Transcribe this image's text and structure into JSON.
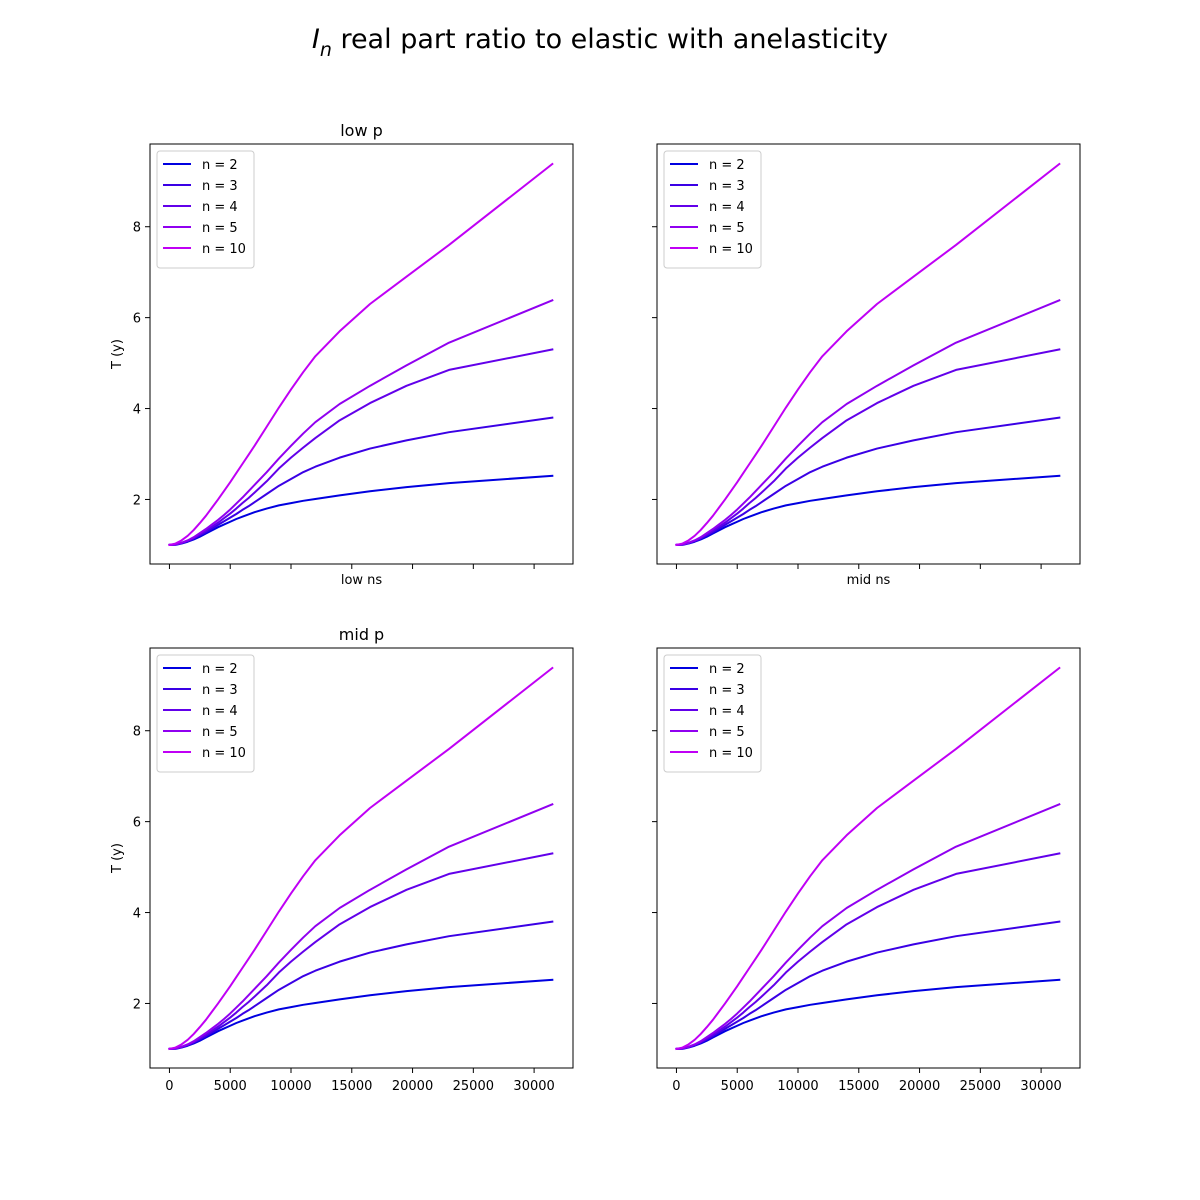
{
  "figure": {
    "title_symbol": "I",
    "title_subscript": "n",
    "title_rest": " real part ratio to elastic with anelasticity"
  },
  "chart_data": [
    {
      "type": "line",
      "title": "low p",
      "xlabel": "low ns",
      "ylabel": "T (y)",
      "show_xticklabels": false,
      "show_yticklabels": true,
      "xlim": [
        -1600,
        33200
      ],
      "ylim": [
        0.58,
        9.82
      ],
      "xticks": [
        0,
        5000,
        10000,
        15000,
        20000,
        25000,
        30000
      ],
      "yticks": [
        2,
        4,
        6,
        8
      ],
      "grid": false,
      "legend_position": "top-left",
      "x": [
        0,
        500,
        1000,
        1500,
        2000,
        2500,
        3000,
        3500,
        4000,
        4500,
        5000,
        5500,
        6000,
        6500,
        7000,
        8000,
        9000,
        10000,
        11000,
        12000,
        14000,
        16500,
        19500,
        23000,
        31500
      ],
      "series": [
        {
          "name": "n = 2",
          "color": "#0000e0",
          "values": [
            1.0,
            1.0,
            1.03,
            1.07,
            1.12,
            1.18,
            1.25,
            1.32,
            1.39,
            1.45,
            1.51,
            1.57,
            1.62,
            1.67,
            1.72,
            1.8,
            1.87,
            1.92,
            1.97,
            2.01,
            2.09,
            2.18,
            2.27,
            2.36,
            2.52
          ]
        },
        {
          "name": "n = 3",
          "color": "#3a00e5",
          "values": [
            1.0,
            1.01,
            1.04,
            1.08,
            1.14,
            1.21,
            1.28,
            1.36,
            1.44,
            1.52,
            1.6,
            1.68,
            1.77,
            1.85,
            1.94,
            2.12,
            2.3,
            2.45,
            2.6,
            2.72,
            2.92,
            3.12,
            3.3,
            3.48,
            3.8
          ]
        },
        {
          "name": "n = 4",
          "color": "#6200ea",
          "values": [
            1.0,
            1.01,
            1.04,
            1.09,
            1.15,
            1.23,
            1.31,
            1.4,
            1.49,
            1.59,
            1.69,
            1.8,
            1.92,
            2.03,
            2.15,
            2.4,
            2.68,
            2.92,
            3.14,
            3.35,
            3.74,
            4.12,
            4.5,
            4.85,
            5.3
          ]
        },
        {
          "name": "n = 5",
          "color": "#9000f0",
          "values": [
            1.0,
            1.01,
            1.05,
            1.1,
            1.17,
            1.26,
            1.35,
            1.45,
            1.55,
            1.66,
            1.78,
            1.91,
            2.04,
            2.18,
            2.32,
            2.6,
            2.9,
            3.18,
            3.45,
            3.7,
            4.1,
            4.5,
            4.95,
            5.45,
            6.38
          ]
        },
        {
          "name": "n = 10",
          "color": "#c000f5",
          "values": [
            1.0,
            1.03,
            1.1,
            1.2,
            1.33,
            1.48,
            1.64,
            1.82,
            2.0,
            2.19,
            2.38,
            2.58,
            2.78,
            2.98,
            3.18,
            3.6,
            4.02,
            4.42,
            4.8,
            5.15,
            5.7,
            6.3,
            6.9,
            7.6,
            9.38
          ]
        }
      ]
    },
    {
      "type": "line",
      "title": "",
      "xlabel": "mid ns",
      "ylabel": "",
      "show_xticklabels": false,
      "show_yticklabels": false,
      "xlim": [
        -1600,
        33200
      ],
      "ylim": [
        0.58,
        9.82
      ],
      "xticks": [
        0,
        5000,
        10000,
        15000,
        20000,
        25000,
        30000
      ],
      "yticks": [
        2,
        4,
        6,
        8
      ],
      "grid": false,
      "legend_position": "top-left",
      "x": [
        0,
        500,
        1000,
        1500,
        2000,
        2500,
        3000,
        3500,
        4000,
        4500,
        5000,
        5500,
        6000,
        6500,
        7000,
        8000,
        9000,
        10000,
        11000,
        12000,
        14000,
        16500,
        19500,
        23000,
        31500
      ],
      "series": [
        {
          "name": "n = 2",
          "color": "#0000e0",
          "values": [
            1.0,
            1.0,
            1.03,
            1.07,
            1.12,
            1.18,
            1.25,
            1.32,
            1.39,
            1.45,
            1.51,
            1.57,
            1.62,
            1.67,
            1.72,
            1.8,
            1.87,
            1.92,
            1.97,
            2.01,
            2.09,
            2.18,
            2.27,
            2.36,
            2.52
          ]
        },
        {
          "name": "n = 3",
          "color": "#3a00e5",
          "values": [
            1.0,
            1.01,
            1.04,
            1.08,
            1.14,
            1.21,
            1.28,
            1.36,
            1.44,
            1.52,
            1.6,
            1.68,
            1.77,
            1.85,
            1.94,
            2.12,
            2.3,
            2.45,
            2.6,
            2.72,
            2.92,
            3.12,
            3.3,
            3.48,
            3.8
          ]
        },
        {
          "name": "n = 4",
          "color": "#6200ea",
          "values": [
            1.0,
            1.01,
            1.04,
            1.09,
            1.15,
            1.23,
            1.31,
            1.4,
            1.49,
            1.59,
            1.69,
            1.8,
            1.92,
            2.03,
            2.15,
            2.4,
            2.68,
            2.92,
            3.14,
            3.35,
            3.74,
            4.12,
            4.5,
            4.85,
            5.3
          ]
        },
        {
          "name": "n = 5",
          "color": "#9000f0",
          "values": [
            1.0,
            1.01,
            1.05,
            1.1,
            1.17,
            1.26,
            1.35,
            1.45,
            1.55,
            1.66,
            1.78,
            1.91,
            2.04,
            2.18,
            2.32,
            2.6,
            2.9,
            3.18,
            3.45,
            3.7,
            4.1,
            4.5,
            4.95,
            5.45,
            6.38
          ]
        },
        {
          "name": "n = 10",
          "color": "#c000f5",
          "values": [
            1.0,
            1.03,
            1.1,
            1.2,
            1.33,
            1.48,
            1.64,
            1.82,
            2.0,
            2.19,
            2.38,
            2.58,
            2.78,
            2.98,
            3.18,
            3.6,
            4.02,
            4.42,
            4.8,
            5.15,
            5.7,
            6.3,
            6.9,
            7.6,
            9.38
          ]
        }
      ]
    },
    {
      "type": "line",
      "title": "mid p",
      "xlabel": "",
      "ylabel": "T (y)",
      "show_xticklabels": true,
      "show_yticklabels": true,
      "xlim": [
        -1600,
        33200
      ],
      "ylim": [
        0.58,
        9.82
      ],
      "xticks": [
        0,
        5000,
        10000,
        15000,
        20000,
        25000,
        30000
      ],
      "yticks": [
        2,
        4,
        6,
        8
      ],
      "grid": false,
      "legend_position": "top-left",
      "x": [
        0,
        500,
        1000,
        1500,
        2000,
        2500,
        3000,
        3500,
        4000,
        4500,
        5000,
        5500,
        6000,
        6500,
        7000,
        8000,
        9000,
        10000,
        11000,
        12000,
        14000,
        16500,
        19500,
        23000,
        31500
      ],
      "series": [
        {
          "name": "n = 2",
          "color": "#0000e0",
          "values": [
            1.0,
            1.0,
            1.03,
            1.07,
            1.12,
            1.18,
            1.25,
            1.32,
            1.39,
            1.45,
            1.51,
            1.57,
            1.62,
            1.67,
            1.72,
            1.8,
            1.87,
            1.92,
            1.97,
            2.01,
            2.09,
            2.18,
            2.27,
            2.36,
            2.52
          ]
        },
        {
          "name": "n = 3",
          "color": "#3a00e5",
          "values": [
            1.0,
            1.01,
            1.04,
            1.08,
            1.14,
            1.21,
            1.28,
            1.36,
            1.44,
            1.52,
            1.6,
            1.68,
            1.77,
            1.85,
            1.94,
            2.12,
            2.3,
            2.45,
            2.6,
            2.72,
            2.92,
            3.12,
            3.3,
            3.48,
            3.8
          ]
        },
        {
          "name": "n = 4",
          "color": "#6200ea",
          "values": [
            1.0,
            1.01,
            1.04,
            1.09,
            1.15,
            1.23,
            1.31,
            1.4,
            1.49,
            1.59,
            1.69,
            1.8,
            1.92,
            2.03,
            2.15,
            2.4,
            2.68,
            2.92,
            3.14,
            3.35,
            3.74,
            4.12,
            4.5,
            4.85,
            5.3
          ]
        },
        {
          "name": "n = 5",
          "color": "#9000f0",
          "values": [
            1.0,
            1.01,
            1.05,
            1.1,
            1.17,
            1.26,
            1.35,
            1.45,
            1.55,
            1.66,
            1.78,
            1.91,
            2.04,
            2.18,
            2.32,
            2.6,
            2.9,
            3.18,
            3.45,
            3.7,
            4.1,
            4.5,
            4.95,
            5.45,
            6.38
          ]
        },
        {
          "name": "n = 10",
          "color": "#c000f5",
          "values": [
            1.0,
            1.03,
            1.1,
            1.2,
            1.33,
            1.48,
            1.64,
            1.82,
            2.0,
            2.19,
            2.38,
            2.58,
            2.78,
            2.98,
            3.18,
            3.6,
            4.02,
            4.42,
            4.8,
            5.15,
            5.7,
            6.3,
            6.9,
            7.6,
            9.38
          ]
        }
      ]
    },
    {
      "type": "line",
      "title": "",
      "xlabel": "",
      "ylabel": "",
      "show_xticklabels": true,
      "show_yticklabels": false,
      "xlim": [
        -1600,
        33200
      ],
      "ylim": [
        0.58,
        9.82
      ],
      "xticks": [
        0,
        5000,
        10000,
        15000,
        20000,
        25000,
        30000
      ],
      "yticks": [
        2,
        4,
        6,
        8
      ],
      "grid": false,
      "legend_position": "top-left",
      "x": [
        0,
        500,
        1000,
        1500,
        2000,
        2500,
        3000,
        3500,
        4000,
        4500,
        5000,
        5500,
        6000,
        6500,
        7000,
        8000,
        9000,
        10000,
        11000,
        12000,
        14000,
        16500,
        19500,
        23000,
        31500
      ],
      "series": [
        {
          "name": "n = 2",
          "color": "#0000e0",
          "values": [
            1.0,
            1.0,
            1.03,
            1.07,
            1.12,
            1.18,
            1.25,
            1.32,
            1.39,
            1.45,
            1.51,
            1.57,
            1.62,
            1.67,
            1.72,
            1.8,
            1.87,
            1.92,
            1.97,
            2.01,
            2.09,
            2.18,
            2.27,
            2.36,
            2.52
          ]
        },
        {
          "name": "n = 3",
          "color": "#3a00e5",
          "values": [
            1.0,
            1.01,
            1.04,
            1.08,
            1.14,
            1.21,
            1.28,
            1.36,
            1.44,
            1.52,
            1.6,
            1.68,
            1.77,
            1.85,
            1.94,
            2.12,
            2.3,
            2.45,
            2.6,
            2.72,
            2.92,
            3.12,
            3.3,
            3.48,
            3.8
          ]
        },
        {
          "name": "n = 4",
          "color": "#6200ea",
          "values": [
            1.0,
            1.01,
            1.04,
            1.09,
            1.15,
            1.23,
            1.31,
            1.4,
            1.49,
            1.59,
            1.69,
            1.8,
            1.92,
            2.03,
            2.15,
            2.4,
            2.68,
            2.92,
            3.14,
            3.35,
            3.74,
            4.12,
            4.5,
            4.85,
            5.3
          ]
        },
        {
          "name": "n = 5",
          "color": "#9000f0",
          "values": [
            1.0,
            1.01,
            1.05,
            1.1,
            1.17,
            1.26,
            1.35,
            1.45,
            1.55,
            1.66,
            1.78,
            1.91,
            2.04,
            2.18,
            2.32,
            2.6,
            2.9,
            3.18,
            3.45,
            3.7,
            4.1,
            4.5,
            4.95,
            5.45,
            6.38
          ]
        },
        {
          "name": "n = 10",
          "color": "#c000f5",
          "values": [
            1.0,
            1.03,
            1.1,
            1.2,
            1.33,
            1.48,
            1.64,
            1.82,
            2.0,
            2.19,
            2.38,
            2.58,
            2.78,
            2.98,
            3.18,
            3.6,
            4.02,
            4.42,
            4.8,
            5.15,
            5.7,
            6.3,
            6.9,
            7.6,
            9.38
          ]
        }
      ]
    }
  ]
}
